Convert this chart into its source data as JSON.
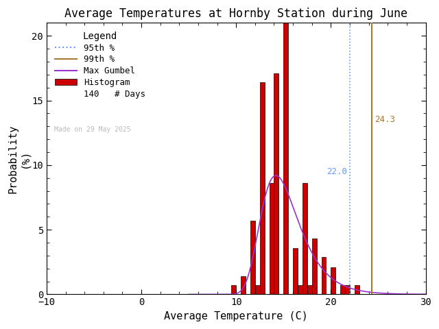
{
  "title": "Average Temperatures at Hornby Station during June",
  "xlabel": "Average Temperature (C)",
  "ylabel": "Probability\n(%)",
  "xlim": [
    -10,
    30
  ],
  "ylim": [
    0,
    21
  ],
  "yticks": [
    0,
    5,
    10,
    15,
    20
  ],
  "xticks": [
    -10,
    0,
    10,
    20,
    30
  ],
  "bin_edges": [
    9.5,
    10.0,
    10.5,
    11.0,
    11.5,
    12.0,
    12.5,
    13.0,
    13.5,
    14.0,
    14.5,
    15.0,
    15.5,
    16.0,
    16.5,
    17.0,
    17.5,
    18.0,
    18.5,
    19.0,
    19.5,
    20.0,
    20.5,
    21.0,
    21.5,
    22.0,
    22.5
  ],
  "bin_heights": [
    0.7,
    0.0,
    1.4,
    0.0,
    5.7,
    0.7,
    16.4,
    0.0,
    8.6,
    17.1,
    0.0,
    21.4,
    0.0,
    3.6,
    0.7,
    8.6,
    0.7,
    4.3,
    0.0,
    2.9,
    0.0,
    2.1,
    0.0,
    0.7,
    0.7,
    0.0,
    0.7
  ],
  "hist_color": "#cc0000",
  "hist_edgecolor": "#000000",
  "gumbel_color": "#9933cc",
  "p95_color": "#6699ff",
  "p95_value": 22.0,
  "p99_color": "#aa7733",
  "p99_value": 24.3,
  "n_days": 140,
  "made_on": "Made on 29 May 2025",
  "made_on_color": "#bbbbbb",
  "background_color": "#ffffff",
  "title_fontsize": 12,
  "axis_fontsize": 11,
  "legend_fontsize": 9,
  "mu_gumbel": 14.2,
  "beta_gumbel": 2.0,
  "bin_width": 0.5
}
